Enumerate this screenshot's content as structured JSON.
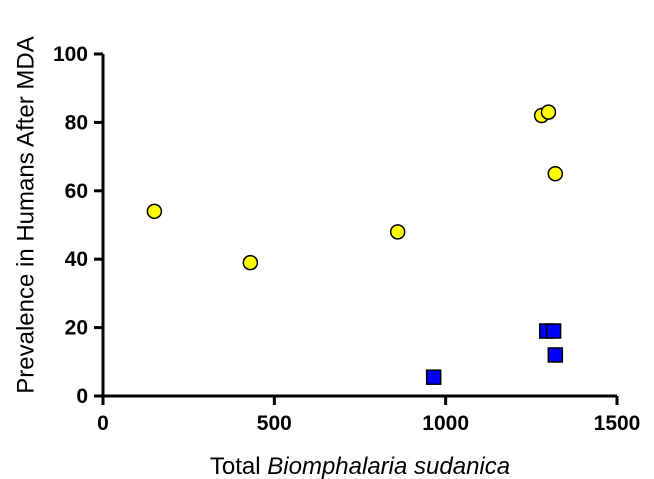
{
  "chart_data": {
    "type": "scatter",
    "xlabel": {
      "plain": "Total ",
      "italic": "Biomphalaria sudanica"
    },
    "ylabel": "Prevalence in Humans After MDA",
    "xlim": [
      0,
      1500
    ],
    "ylim": [
      0,
      100
    ],
    "xticks": [
      0,
      500,
      1000,
      1500
    ],
    "yticks": [
      0,
      20,
      40,
      60,
      80,
      100
    ],
    "grid": false,
    "legend": "none",
    "series": [
      {
        "marker": "circle",
        "color": "#ffff00",
        "points": [
          {
            "x": 150,
            "y": 54
          },
          {
            "x": 430,
            "y": 39
          },
          {
            "x": 860,
            "y": 48
          },
          {
            "x": 1280,
            "y": 82
          },
          {
            "x": 1300,
            "y": 83
          },
          {
            "x": 1320,
            "y": 65
          }
        ]
      },
      {
        "marker": "square",
        "color": "#0000ff",
        "points": [
          {
            "x": 965,
            "y": 5.5
          },
          {
            "x": 1295,
            "y": 19
          },
          {
            "x": 1315,
            "y": 19
          },
          {
            "x": 1320,
            "y": 12
          }
        ]
      }
    ]
  }
}
